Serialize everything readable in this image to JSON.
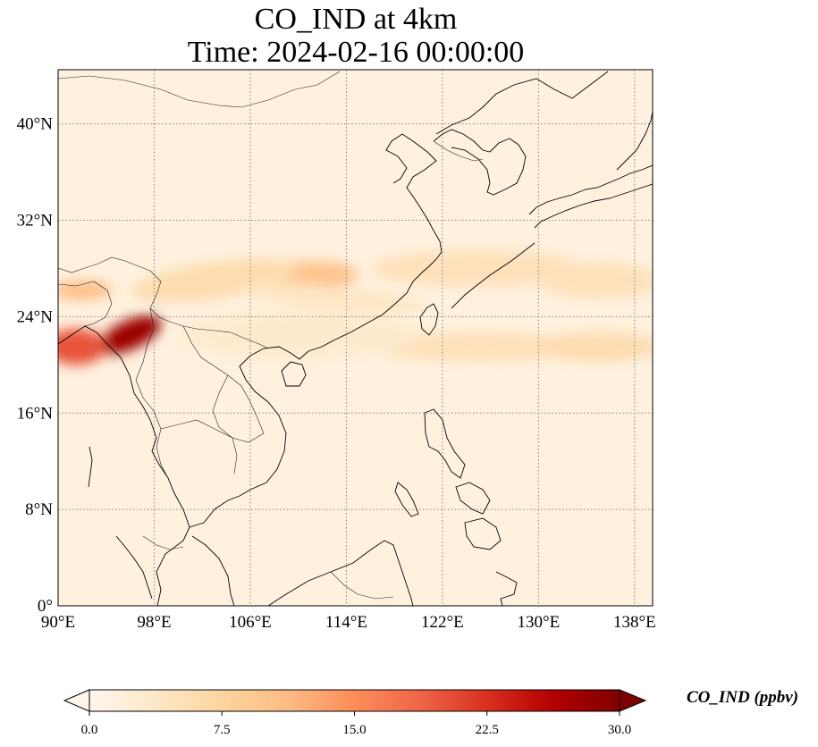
{
  "title": {
    "line1": "CO_IND at 4km",
    "line2": "Time: 2024-02-16 00:00:00"
  },
  "map": {
    "projection": "PlateCarree",
    "lon_range": [
      90,
      139.5
    ],
    "lat_range": [
      0,
      44.5
    ],
    "x_ticks": [
      {
        "lon": 90,
        "label": "90°E"
      },
      {
        "lon": 98,
        "label": "98°E"
      },
      {
        "lon": 106,
        "label": "106°E"
      },
      {
        "lon": 114,
        "label": "114°E"
      },
      {
        "lon": 122,
        "label": "122°E"
      },
      {
        "lon": 130,
        "label": "130°E"
      },
      {
        "lon": 138,
        "label": "138°E"
      }
    ],
    "y_ticks": [
      {
        "lat": 0,
        "label": "0°"
      },
      {
        "lat": 8,
        "label": "8°N"
      },
      {
        "lat": 16,
        "label": "16°N"
      },
      {
        "lat": 24,
        "label": "24°N"
      },
      {
        "lat": 32,
        "label": "32°N"
      },
      {
        "lat": 40,
        "label": "40°N"
      }
    ],
    "gridlines": "dotted",
    "plumes": [
      {
        "lon": 96,
        "lat": 22.5,
        "value": 28,
        "rx_deg": 2.8,
        "ry_deg": 1.2,
        "rotate": -25
      },
      {
        "lon": 91.5,
        "lat": 21.5,
        "value": 20,
        "rx_deg": 2.5,
        "ry_deg": 1.5,
        "rotate": 0
      },
      {
        "lon": 92,
        "lat": 26.2,
        "value": 11,
        "rx_deg": 2.5,
        "ry_deg": 0.8,
        "rotate": 0
      },
      {
        "lon": 110,
        "lat": 27.3,
        "value": 10,
        "rx_deg": 5,
        "ry_deg": 1.3,
        "rotate": -3
      },
      {
        "lon": 103,
        "lat": 27,
        "value": 6,
        "rx_deg": 7,
        "ry_deg": 1.5,
        "rotate": -8
      },
      {
        "lon": 125,
        "lat": 28,
        "value": 5,
        "rx_deg": 9,
        "ry_deg": 1.5,
        "rotate": 0
      },
      {
        "lon": 135,
        "lat": 27,
        "value": 5,
        "rx_deg": 5,
        "ry_deg": 1.5,
        "rotate": 0
      },
      {
        "lon": 113,
        "lat": 25.5,
        "value": 4,
        "rx_deg": 8,
        "ry_deg": 1,
        "rotate": 5
      },
      {
        "lon": 125,
        "lat": 21.5,
        "value": 5,
        "rx_deg": 9,
        "ry_deg": 1.2,
        "rotate": 0
      },
      {
        "lon": 135,
        "lat": 21.5,
        "value": 6,
        "rx_deg": 5,
        "ry_deg": 1.2,
        "rotate": 0
      },
      {
        "lon": 110,
        "lat": 22.5,
        "value": 3,
        "rx_deg": 10,
        "ry_deg": 2,
        "rotate": 0
      }
    ],
    "background_value": 1.5
  },
  "colorbar": {
    "cmap": "OrRd",
    "min": 0.0,
    "max": 30.0,
    "extend": "both",
    "ticks": [
      "0.0",
      "7.5",
      "15.0",
      "22.5",
      "30.0"
    ],
    "tick_values": [
      0,
      7.5,
      15,
      22.5,
      30
    ],
    "label": "CO_IND (ppbv)",
    "colors": [
      "#fff7ec",
      "#fee8c8",
      "#fdd49e",
      "#fdbb84",
      "#fc8d59",
      "#ef6548",
      "#d7301f",
      "#b30000",
      "#7f0000"
    ]
  },
  "colors": {
    "coast": "#000000",
    "border": "#222222",
    "grid": "#808080"
  }
}
